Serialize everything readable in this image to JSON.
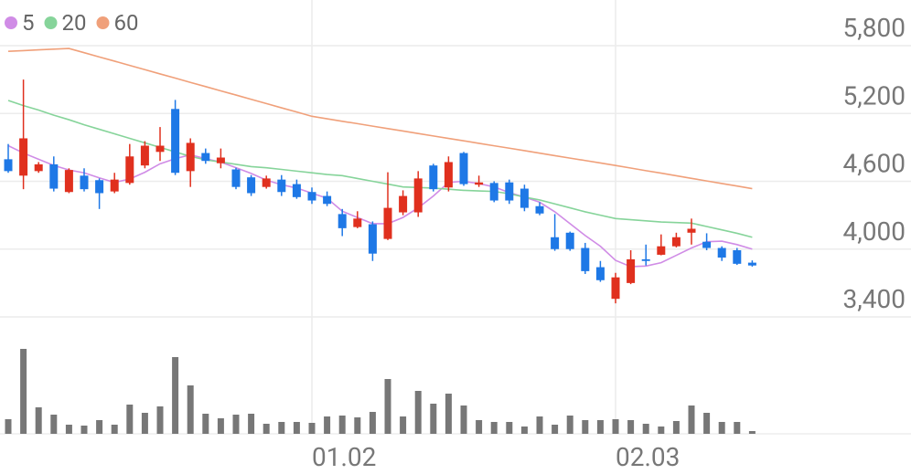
{
  "chart_data": {
    "type": "candlestick",
    "categories": [
      null,
      null,
      null,
      null,
      null,
      null,
      null,
      null,
      null,
      null,
      null,
      null,
      null,
      null,
      null,
      null,
      null,
      null,
      null,
      null,
      "01.02",
      null,
      null,
      null,
      null,
      null,
      null,
      null,
      null,
      null,
      null,
      null,
      null,
      null,
      null,
      null,
      null,
      null,
      null,
      null,
      "02.03",
      null,
      null,
      null,
      null,
      null,
      null,
      null,
      null,
      null
    ],
    "open": [
      4795,
      4650,
      4690,
      4750,
      4505,
      4650,
      4610,
      4510,
      4585,
      4740,
      4860,
      5240,
      4690,
      4850,
      4760,
      4705,
      4635,
      4550,
      4615,
      4575,
      4505,
      4470,
      4310,
      4195,
      4220,
      4090,
      4325,
      4325,
      4740,
      4545,
      4850,
      4570,
      4585,
      4590,
      4535,
      4380,
      4105,
      4145,
      4010,
      3840,
      3560,
      3700,
      3910,
      3950,
      4025,
      4145,
      4065,
      4010,
      3990,
      3880
    ],
    "high": [
      4930,
      5500,
      4770,
      4820,
      4715,
      4715,
      4625,
      4675,
      4930,
      4955,
      5080,
      5320,
      4980,
      4890,
      4890,
      4720,
      4655,
      4650,
      4655,
      4615,
      4545,
      4510,
      4355,
      4335,
      4245,
      4680,
      4520,
      4690,
      4755,
      4820,
      4860,
      4650,
      4600,
      4615,
      4570,
      4415,
      4310,
      4155,
      4055,
      3895,
      3790,
      3990,
      4040,
      4130,
      4145,
      4270,
      4140,
      4025,
      4010,
      3900
    ],
    "low": [
      4675,
      4530,
      4675,
      4510,
      4495,
      4510,
      4355,
      4495,
      4570,
      4715,
      4780,
      4655,
      4550,
      4755,
      4715,
      4530,
      4470,
      4535,
      4470,
      4445,
      4400,
      4380,
      4115,
      4185,
      3895,
      4080,
      4300,
      4285,
      4510,
      4510,
      4560,
      4550,
      4415,
      4400,
      4335,
      4300,
      3985,
      3985,
      3780,
      3710,
      3520,
      3690,
      3855,
      3945,
      4015,
      4040,
      3990,
      3895,
      3860,
      3845
    ],
    "close": [
      4690,
      4980,
      4750,
      4535,
      4700,
      4530,
      4495,
      4615,
      4820,
      4915,
      4915,
      4675,
      4940,
      4780,
      4810,
      4550,
      4495,
      4625,
      4505,
      4460,
      4430,
      4400,
      4185,
      4270,
      3960,
      4365,
      4470,
      4625,
      4530,
      4770,
      4575,
      4590,
      4430,
      4430,
      4365,
      4315,
      4000,
      4000,
      3805,
      3725,
      3750,
      3910,
      3895,
      4025,
      4105,
      4180,
      4010,
      3925,
      3870,
      3855
    ],
    "up_color": "#e0301e",
    "down_color": "#1e78e6",
    "series": [
      {
        "name": "5",
        "color": "#d08ce6",
        "values": [
          4915,
          4850,
          4795,
          4740,
          4700,
          4675,
          4630,
          4590,
          4620,
          4680,
          4755,
          4800,
          4835,
          4800,
          4770,
          4720,
          4670,
          4610,
          4570,
          4540,
          4495,
          4450,
          4335,
          4280,
          4225,
          4225,
          4280,
          4365,
          4470,
          4590,
          4600,
          4580,
          4550,
          4500,
          4460,
          4415,
          4330,
          4225,
          4120,
          4025,
          3900,
          3845,
          3850,
          3880,
          3945,
          4010,
          4065,
          4070,
          4040,
          4000
        ]
      },
      {
        "name": "20",
        "color": "#86d49a",
        "values": [
          5315,
          5270,
          5230,
          5185,
          5145,
          5100,
          5060,
          5020,
          4980,
          4940,
          4900,
          4860,
          4820,
          4790,
          4770,
          4750,
          4730,
          4720,
          4705,
          4690,
          4675,
          4660,
          4650,
          4625,
          4600,
          4575,
          4550,
          4545,
          4540,
          4530,
          4520,
          4515,
          4510,
          4490,
          4460,
          4435,
          4400,
          4365,
          4330,
          4300,
          4270,
          4260,
          4250,
          4240,
          4235,
          4230,
          4200,
          4170,
          4140,
          4105
        ]
      },
      {
        "name": "60",
        "color": "#f0a07a",
        "values": [
          5750,
          5756,
          5763,
          5769,
          5775,
          5738,
          5700,
          5663,
          5625,
          5588,
          5550,
          5513,
          5475,
          5438,
          5400,
          5363,
          5325,
          5288,
          5250,
          5213,
          5175,
          5153,
          5131,
          5110,
          5088,
          5066,
          5045,
          5023,
          5001,
          4979,
          4958,
          4936,
          4914,
          4893,
          4871,
          4849,
          4827,
          4805,
          4784,
          4762,
          4740,
          4717,
          4694,
          4672,
          4649,
          4626,
          4603,
          4580,
          4558,
          4535
        ]
      }
    ],
    "volume": [
      16,
      93,
      29,
      21,
      10,
      9,
      15,
      10,
      32,
      23,
      30,
      84,
      53,
      22,
      17,
      21,
      22,
      11,
      13,
      13,
      12,
      19,
      20,
      18,
      24,
      60,
      19,
      47,
      33,
      44,
      31,
      15,
      13,
      13,
      8,
      19,
      10,
      20,
      15,
      15,
      16,
      15,
      11,
      8,
      14,
      31,
      23,
      13,
      13,
      3
    ],
    "volume_color": "#777777",
    "vlim": [
      0,
      100
    ],
    "ylim": [
      3400,
      5800
    ],
    "yticks": [
      {
        "value": 3400,
        "label": "3,400"
      },
      {
        "value": 4000,
        "label": "4,000"
      },
      {
        "value": 4600,
        "label": "4,600"
      },
      {
        "value": 5200,
        "label": "5,200"
      },
      {
        "value": 5800,
        "label": "5,800"
      }
    ],
    "grid": true
  }
}
